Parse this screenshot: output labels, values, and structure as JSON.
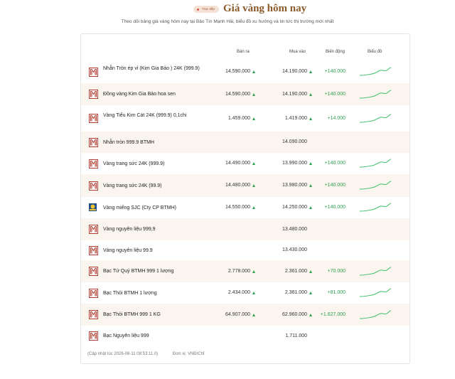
{
  "header": {
    "badge": "Trực tiếp",
    "title": "Giá vàng hôm nay",
    "subtitle": "Theo dõi bảng giá vàng hôm nay tại Bảo Tín Mạnh Hải, biểu đồ xu hướng và tin tức thị trường mới nhất"
  },
  "table": {
    "columns": [
      "Bán ra",
      "Mua vào",
      "Biến động",
      "Biểu đồ"
    ],
    "rows": [
      {
        "name": "Nhẫn Tròn ép vỉ (Kim Gia Bảo ) 24K (999.9)",
        "sell": "14.590.000",
        "buy": "14.190.000",
        "change": "+140.000"
      },
      {
        "name": "Đồng vàng Kim Gia Bảo hoa sen",
        "sell": "14.590.000",
        "buy": "14.190.000",
        "change": "+140.000"
      },
      {
        "name": "Vàng Tiểu Kim Cát 24K (999.9) 0,1chi",
        "sell": "1.459.000",
        "buy": "1.419.000",
        "change": "+14.000"
      },
      {
        "name": "Nhẫn tròn 999.9 BTMH",
        "sell": null,
        "buy": "14.090.000",
        "change": null
      },
      {
        "name": "Vàng trang sức 24K (999.9)",
        "sell": "14.490.000",
        "buy": "13.990.000",
        "change": "+140.000"
      },
      {
        "name": "Vàng trang sức 24K (99.9)",
        "sell": "14.480.000",
        "buy": "13.980.000",
        "change": "+140.000"
      },
      {
        "name": "Vàng miếng SJC (Cty CP BTMH)",
        "sell": "14.550.000",
        "buy": "14.250.000",
        "change": "+140.000",
        "sjc": true
      },
      {
        "name": "Vàng nguyên liệu 999,9",
        "sell": null,
        "buy": "13.480.000",
        "change": null
      },
      {
        "name": "Vàng nguyên liệu 99.9",
        "sell": null,
        "buy": "13.430.000",
        "change": null
      },
      {
        "name": "Bạc Tứ Quý BTMH 999 1 lượng",
        "sell": "2.778.000",
        "buy": "2.361.000",
        "change": "+70.000"
      },
      {
        "name": "Bạc Thỏi BTMH 1 lượng",
        "sell": "2.434.000",
        "buy": "2.361.000",
        "change": "+81.000"
      },
      {
        "name": "Bạc Thỏi BTMH 999 1 KG",
        "sell": "64.907.000",
        "buy": "62.960.000",
        "change": "+1.627.000"
      },
      {
        "name": "Bạc Nguyên liệu 999",
        "sell": null,
        "buy": "1.711.000",
        "change": null
      }
    ]
  },
  "footer": {
    "updated": "(Cập nhật lúc 2026-08-11 08:53:11.0)",
    "unit": "Đơn vị: VNĐ/Chỉ"
  }
}
